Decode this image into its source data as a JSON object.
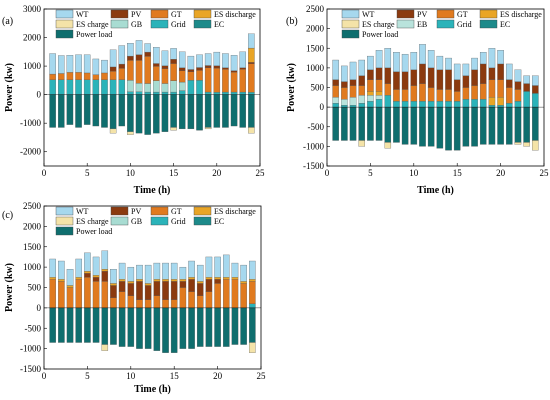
{
  "colors": {
    "WT": "#a6d8ee",
    "PV": "#8b3a0f",
    "GT": "#e07a1f",
    "ES discharge": "#e9a526",
    "ES charge": "#f4e3a8",
    "GB": "#a8dcd2",
    "EB": "#b9e3dc",
    "Grid": "#2bb3b9",
    "EC": "#1d8a8a",
    "Power load": "#0f6e6e"
  },
  "chart_data": [
    {
      "type": "bar",
      "stacked": true,
      "panel_label": "(a)",
      "xlabel": "Time (h)",
      "ylabel": "Power (kw)",
      "xlim": [
        0,
        25
      ],
      "ylim": [
        -2500,
        3000
      ],
      "xticks": [
        0,
        5,
        10,
        15,
        20,
        25
      ],
      "yticks": [
        -2000,
        -1000,
        0,
        1000,
        2000,
        3000
      ],
      "legend": {
        "placement": "top",
        "rows": [
          [
            "WT",
            "PV",
            "GT",
            "ES discharge"
          ],
          [
            "ES charge",
            "GB",
            "Grid",
            "EC"
          ],
          [
            "Power load"
          ]
        ]
      },
      "x": [
        1,
        2,
        3,
        4,
        5,
        6,
        7,
        8,
        9,
        10,
        11,
        12,
        13,
        14,
        15,
        16,
        17,
        18,
        19,
        20,
        21,
        22,
        23,
        24
      ],
      "series": [
        {
          "name": "Grid",
          "values": [
            520,
            520,
            520,
            520,
            520,
            520,
            520,
            520,
            520,
            100,
            100,
            90,
            90,
            90,
            90,
            140,
            500,
            500,
            90,
            80,
            90,
            90,
            90,
            80
          ]
        },
        {
          "name": "GB",
          "values": [
            0,
            0,
            0,
            0,
            0,
            0,
            0,
            0,
            0,
            400,
            300,
            300,
            400,
            300,
            400,
            300,
            0,
            0,
            0,
            0,
            0,
            0,
            0,
            0
          ]
        },
        {
          "name": "GT",
          "values": [
            200,
            220,
            260,
            260,
            240,
            180,
            240,
            300,
            400,
            700,
            800,
            950,
            500,
            520,
            600,
            400,
            300,
            350,
            850,
            850,
            800,
            700,
            800,
            1000
          ]
        },
        {
          "name": "PV",
          "values": [
            0,
            0,
            0,
            0,
            0,
            0,
            0,
            150,
            150,
            150,
            200,
            150,
            100,
            100,
            150,
            100,
            80,
            100,
            80,
            80,
            50,
            50,
            50,
            50
          ]
        },
        {
          "name": "ES discharge",
          "values": [
            0,
            0,
            0,
            0,
            0,
            0,
            0,
            0,
            0,
            0,
            0,
            0,
            0,
            0,
            0,
            0,
            0,
            0,
            0,
            0,
            0,
            0,
            0,
            500
          ]
        },
        {
          "name": "WT",
          "values": [
            720,
            630,
            600,
            620,
            640,
            550,
            450,
            600,
            650,
            450,
            500,
            300,
            570,
            530,
            380,
            560,
            470,
            450,
            420,
            480,
            500,
            540,
            560,
            500
          ]
        },
        {
          "name": "Power load",
          "values": [
            -1150,
            -1150,
            -1050,
            -1150,
            -1050,
            -1100,
            -1150,
            -1200,
            -1100,
            -1300,
            -1350,
            -1400,
            -1350,
            -1300,
            -1150,
            -1200,
            -1200,
            -1250,
            -1150,
            -1150,
            -1150,
            -1100,
            -1150,
            -1150
          ]
        },
        {
          "name": "EC",
          "values": [
            0,
            0,
            0,
            0,
            0,
            0,
            0,
            0,
            0,
            0,
            0,
            0,
            0,
            0,
            0,
            0,
            0,
            0,
            0,
            0,
            0,
            0,
            0,
            0
          ]
        },
        {
          "name": "ES charge",
          "values": [
            0,
            0,
            0,
            0,
            0,
            0,
            0,
            -150,
            0,
            -100,
            0,
            0,
            0,
            0,
            -100,
            0,
            0,
            0,
            -50,
            0,
            0,
            0,
            0,
            -200
          ]
        }
      ]
    },
    {
      "type": "bar",
      "stacked": true,
      "panel_label": "(b)",
      "xlabel": "Time (h)",
      "ylabel": "Power (kw)",
      "xlim": [
        0,
        25
      ],
      "ylim": [
        -1500,
        2500
      ],
      "xticks": [
        0,
        5,
        10,
        15,
        20,
        25
      ],
      "yticks": [
        -1500,
        -1000,
        -500,
        0,
        500,
        1000,
        1500,
        2000,
        2500
      ],
      "legend": {
        "placement": "top",
        "rows": [
          [
            "WT",
            "PV",
            "GT",
            "ES discharge"
          ],
          [
            "ES charge",
            "EB",
            "Grid",
            "EC"
          ],
          [
            "Power load"
          ]
        ]
      },
      "x": [
        1,
        2,
        3,
        4,
        5,
        6,
        7,
        8,
        9,
        10,
        11,
        12,
        13,
        14,
        15,
        16,
        17,
        18,
        19,
        20,
        21,
        22,
        23,
        24
      ],
      "series": [
        {
          "name": "Grid",
          "values": [
            100,
            50,
            50,
            100,
            150,
            200,
            300,
            150,
            150,
            150,
            150,
            150,
            150,
            150,
            150,
            200,
            200,
            200,
            50,
            50,
            100,
            150,
            400,
            350
          ]
        },
        {
          "name": "EB",
          "values": [
            150,
            150,
            200,
            200,
            150,
            100,
            0,
            0,
            0,
            0,
            0,
            0,
            0,
            0,
            0,
            0,
            0,
            0,
            0,
            0,
            0,
            0,
            0,
            0
          ]
        },
        {
          "name": "ES discharge",
          "values": [
            0,
            0,
            0,
            0,
            100,
            100,
            0,
            0,
            0,
            0,
            0,
            0,
            0,
            0,
            0,
            0,
            0,
            0,
            200,
            200,
            0,
            0,
            0,
            0
          ]
        },
        {
          "name": "GT",
          "values": [
            300,
            300,
            300,
            250,
            300,
            300,
            300,
            300,
            300,
            400,
            450,
            350,
            300,
            300,
            250,
            300,
            350,
            400,
            450,
            450,
            400,
            300,
            0,
            0
          ]
        },
        {
          "name": "PV",
          "values": [
            150,
            150,
            150,
            250,
            250,
            300,
            400,
            450,
            450,
            400,
            500,
            500,
            500,
            500,
            300,
            300,
            400,
            500,
            300,
            400,
            200,
            200,
            200,
            200
          ]
        },
        {
          "name": "WT",
          "values": [
            500,
            400,
            450,
            400,
            350,
            450,
            500,
            500,
            450,
            450,
            500,
            450,
            350,
            300,
            400,
            300,
            300,
            300,
            500,
            350,
            400,
            300,
            200,
            250
          ]
        },
        {
          "name": "Power load",
          "values": [
            -850,
            -850,
            -850,
            -850,
            -850,
            -850,
            -900,
            -900,
            -950,
            -950,
            -1000,
            -1000,
            -1050,
            -1100,
            -1100,
            -1000,
            -1000,
            -950,
            -950,
            -950,
            -950,
            -900,
            -900,
            -850
          ]
        },
        {
          "name": "EC",
          "values": [
            0,
            0,
            0,
            0,
            0,
            0,
            0,
            0,
            0,
            0,
            0,
            0,
            0,
            0,
            0,
            0,
            0,
            0,
            0,
            0,
            0,
            0,
            0,
            0
          ]
        },
        {
          "name": "ES charge",
          "values": [
            0,
            0,
            0,
            -150,
            0,
            0,
            -150,
            0,
            0,
            0,
            0,
            0,
            0,
            0,
            0,
            0,
            0,
            0,
            0,
            0,
            0,
            -50,
            -100,
            -250
          ]
        }
      ]
    },
    {
      "type": "bar",
      "stacked": true,
      "panel_label": "(c)",
      "xlabel": "Time (h)",
      "ylabel": "Power (kw)",
      "xlim": [
        0,
        25
      ],
      "ylim": [
        -1500,
        2500
      ],
      "xticks": [
        0,
        5,
        10,
        15,
        20,
        25
      ],
      "yticks": [
        -1500,
        -1000,
        -500,
        0,
        500,
        1000,
        1500,
        2000,
        2500
      ],
      "legend": {
        "placement": "top",
        "rows": [
          [
            "WT",
            "PV",
            "GT",
            "ES discharge"
          ],
          [
            "ES charge",
            "GB",
            "Grid",
            "EC"
          ],
          [
            "Power load"
          ]
        ]
      },
      "x": [
        1,
        2,
        3,
        4,
        5,
        6,
        7,
        8,
        9,
        10,
        11,
        12,
        13,
        14,
        15,
        16,
        17,
        18,
        19,
        20,
        21,
        22,
        23,
        24
      ],
      "series": [
        {
          "name": "Grid",
          "values": [
            0,
            0,
            0,
            0,
            0,
            0,
            0,
            0,
            0,
            0,
            0,
            0,
            0,
            0,
            0,
            0,
            0,
            0,
            0,
            0,
            0,
            0,
            0,
            100
          ]
        },
        {
          "name": "GT",
          "values": [
            700,
            650,
            500,
            700,
            750,
            650,
            650,
            250,
            400,
            300,
            200,
            200,
            300,
            200,
            200,
            500,
            400,
            300,
            400,
            600,
            700,
            700,
            600,
            550
          ]
        },
        {
          "name": "PV",
          "values": [
            0,
            0,
            0,
            0,
            100,
            100,
            250,
            300,
            250,
            300,
            450,
            350,
            350,
            450,
            450,
            150,
            300,
            300,
            300,
            100,
            0,
            0,
            0,
            0
          ]
        },
        {
          "name": "ES discharge",
          "values": [
            50,
            50,
            50,
            50,
            50,
            50,
            50,
            50,
            50,
            50,
            50,
            50,
            50,
            50,
            50,
            50,
            50,
            50,
            50,
            50,
            50,
            50,
            50,
            50
          ]
        },
        {
          "name": "WT",
          "values": [
            450,
            450,
            400,
            450,
            450,
            450,
            450,
            350,
            400,
            350,
            350,
            450,
            400,
            400,
            400,
            300,
            400,
            400,
            500,
            500,
            550,
            350,
            400,
            450
          ]
        },
        {
          "name": "Power load",
          "values": [
            -850,
            -850,
            -850,
            -850,
            -850,
            -850,
            -900,
            -900,
            -950,
            -950,
            -1000,
            -1000,
            -1050,
            -1100,
            -1100,
            -1000,
            -1000,
            -950,
            -950,
            -950,
            -950,
            -900,
            -900,
            -850
          ]
        },
        {
          "name": "EC",
          "values": [
            0,
            0,
            0,
            0,
            0,
            0,
            0,
            0,
            0,
            0,
            0,
            0,
            0,
            0,
            0,
            0,
            0,
            0,
            0,
            0,
            0,
            0,
            0,
            0
          ]
        },
        {
          "name": "ES charge",
          "values": [
            0,
            0,
            0,
            0,
            0,
            0,
            -150,
            0,
            0,
            0,
            0,
            0,
            0,
            0,
            0,
            0,
            0,
            0,
            0,
            0,
            0,
            0,
            0,
            -250
          ]
        }
      ]
    }
  ]
}
